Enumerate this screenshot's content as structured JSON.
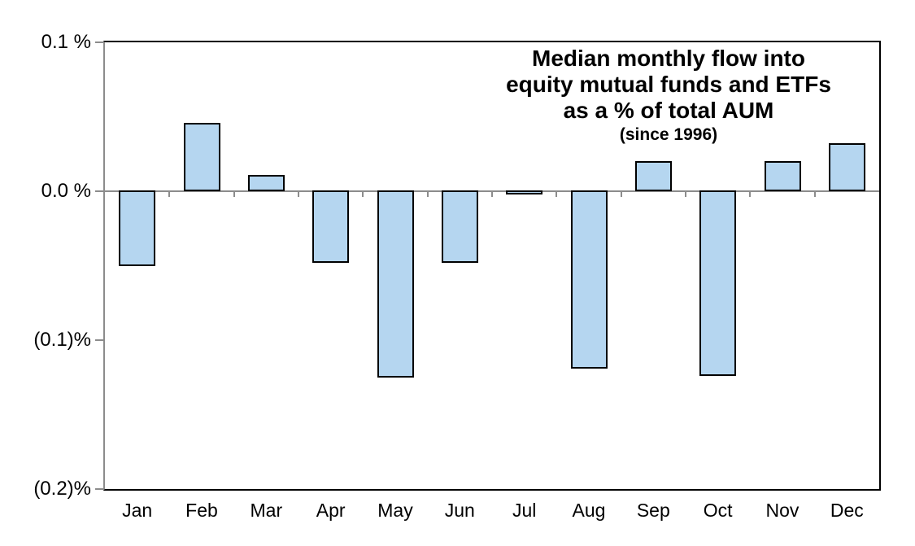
{
  "chart_data": {
    "type": "bar",
    "title": "Median monthly flow into equity mutual funds and ETFs as a % of total AUM (since 1996)",
    "title_lines": [
      "Median monthly flow into",
      "equity mutual funds and ETFs",
      "as a % of total AUM",
      "(since 1996)"
    ],
    "categories": [
      "Jan",
      "Feb",
      "Mar",
      "Apr",
      "May",
      "Jun",
      "Jul",
      "Aug",
      "Sep",
      "Oct",
      "Nov",
      "Dec"
    ],
    "values": [
      -0.05,
      0.046,
      0.011,
      -0.048,
      -0.125,
      -0.048,
      -0.002,
      -0.119,
      0.02,
      -0.124,
      0.02,
      0.032
    ],
    "unit": "% of total AUM",
    "xlabel": "",
    "ylabel": "",
    "ylim": [
      -0.2,
      0.1
    ],
    "ytick_values": [
      0.1,
      0.0,
      -0.1,
      -0.2
    ],
    "ytick_labels": [
      "0.1 %",
      "0.0 %",
      "(0.1)%",
      "(0.2)%"
    ],
    "grid": false,
    "legend_position": "none",
    "bar_fill": "#B5D6F0",
    "bar_border": "#000000",
    "axis_color": "#8C8C8C",
    "frame_color": "#000000",
    "background": "#FFFFFF",
    "text_color": "#000000"
  }
}
